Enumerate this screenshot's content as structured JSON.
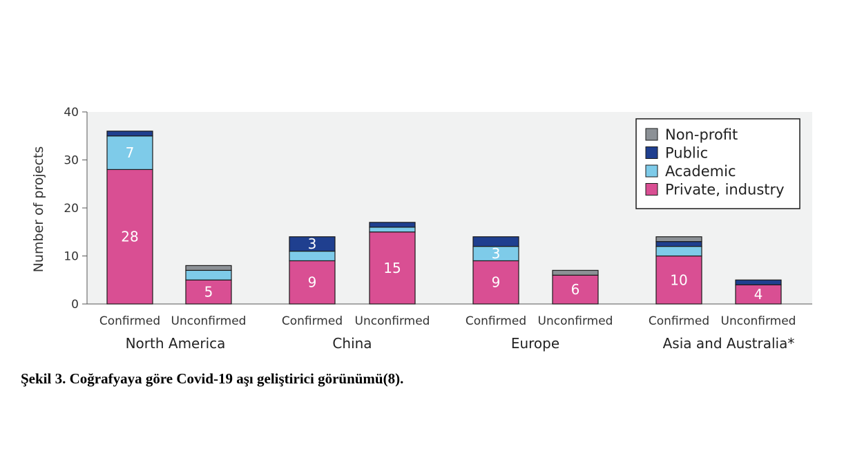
{
  "chart_data": {
    "type": "bar",
    "stacked": true,
    "ylabel": "Number of projects",
    "ylim": [
      0,
      40
    ],
    "yticks": [
      0,
      10,
      20,
      30,
      40
    ],
    "groups": [
      "North America",
      "China",
      "Europe",
      "Asia and Australia*"
    ],
    "categories": [
      "Confirmed",
      "Unconfirmed",
      "Confirmed",
      "Unconfirmed",
      "Confirmed",
      "Unconfirmed",
      "Confirmed",
      "Unconfirmed"
    ],
    "series": [
      {
        "name": "Private, industry",
        "color": "#d94f93",
        "values": [
          28,
          5,
          9,
          15,
          9,
          6,
          10,
          4
        ]
      },
      {
        "name": "Academic",
        "color": "#7ecbe9",
        "values": [
          7,
          2,
          2,
          1,
          3,
          0,
          2,
          0
        ]
      },
      {
        "name": "Public",
        "color": "#1f3f8f",
        "values": [
          1,
          0,
          3,
          1,
          2,
          0,
          1,
          1
        ]
      },
      {
        "name": "Non-profit",
        "color": "#8c9196",
        "values": [
          0,
          1,
          0,
          0,
          0,
          1,
          1,
          0
        ]
      }
    ],
    "bar_labels": [
      [
        {
          "series": 0,
          "text": "28"
        },
        {
          "series": 1,
          "text": "7"
        }
      ],
      [
        {
          "series": 0,
          "text": "5"
        }
      ],
      [
        {
          "series": 0,
          "text": "9"
        },
        {
          "series": 2,
          "text": "3"
        }
      ],
      [
        {
          "series": 0,
          "text": "15"
        }
      ],
      [
        {
          "series": 0,
          "text": "9"
        },
        {
          "series": 1,
          "text": "3"
        }
      ],
      [
        {
          "series": 0,
          "text": "6"
        }
      ],
      [
        {
          "series": 0,
          "text": "10"
        }
      ],
      [
        {
          "series": 0,
          "text": "4"
        }
      ]
    ],
    "legend_order": [
      "Non-profit",
      "Public",
      "Academic",
      "Private, industry"
    ],
    "legend_position": "top-right",
    "grid": false
  },
  "caption": "Şekil 3. Coğrafyaya göre Covid-19 aşı geliştirici görünümü(8)."
}
